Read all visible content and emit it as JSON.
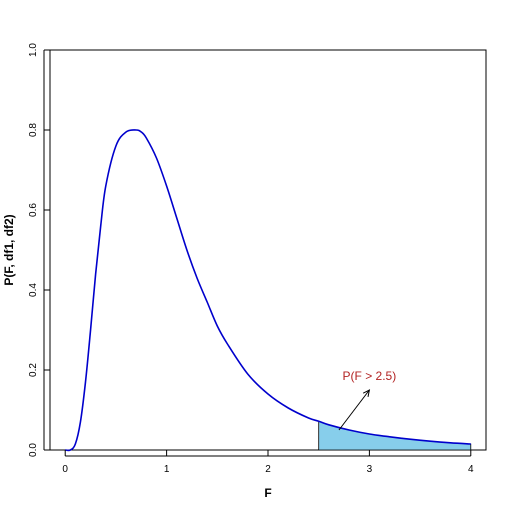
{
  "chart_data": {
    "type": "line",
    "title": "",
    "xlabel": "F",
    "ylabel": "P(F, df1, df2)",
    "xlim": [
      -0.15,
      4.15
    ],
    "ylim": [
      0,
      1.0
    ],
    "x_ticks": [
      "0",
      "1",
      "2",
      "3",
      "4"
    ],
    "y_ticks": [
      "0.0",
      "0.2",
      "0.4",
      "0.6",
      "0.8",
      "1.0"
    ],
    "grid": false,
    "series": [
      {
        "color": "#0000cc",
        "x": [
          0,
          0.05,
          0.1,
          0.15,
          0.2,
          0.25,
          0.3,
          0.35,
          0.4,
          0.5,
          0.6,
          0.7,
          0.75,
          0.8,
          0.9,
          1.0,
          1.1,
          1.2,
          1.3,
          1.4,
          1.5,
          1.6,
          1.8,
          2.0,
          2.2,
          2.4,
          2.5,
          2.6,
          2.8,
          3.0,
          3.2,
          3.4,
          3.6,
          3.8,
          4.0
        ],
        "y": [
          0,
          0.0,
          0.015,
          0.07,
          0.17,
          0.3,
          0.44,
          0.56,
          0.66,
          0.76,
          0.795,
          0.8,
          0.795,
          0.78,
          0.73,
          0.66,
          0.58,
          0.5,
          0.43,
          0.37,
          0.31,
          0.265,
          0.19,
          0.14,
          0.105,
          0.08,
          0.072,
          0.063,
          0.05,
          0.04,
          0.033,
          0.027,
          0.022,
          0.018,
          0.015
        ]
      }
    ],
    "shaded_region": {
      "from": 2.5,
      "to": 4.0,
      "color": "#87ceeb"
    },
    "annotation": {
      "text": "P(F > 2.5)",
      "color": "#b22222",
      "arrow_from": [
        3.0,
        0.15
      ],
      "arrow_to": [
        2.7,
        0.05
      ]
    }
  }
}
